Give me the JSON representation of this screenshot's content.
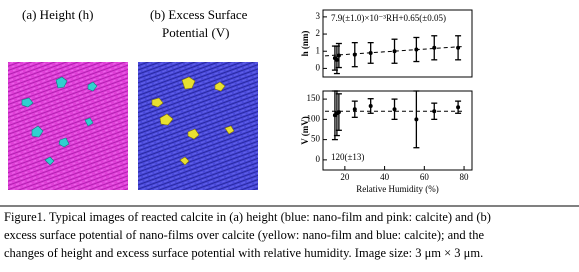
{
  "panels": {
    "a": "(a) Height (h)",
    "b_line1": "(b) Excess Surface",
    "b_line2": "Potential (V)"
  },
  "chart_data": [
    {
      "type": "scatter",
      "ylabel": "h (nm)",
      "annotation": "7.9(±1.0)×10⁻³RH+0.65(±0.05)",
      "xlim": [
        9,
        84
      ],
      "ylim": [
        -0.5,
        3.4
      ],
      "yticks": [
        0,
        1,
        2,
        3
      ],
      "color": "#000000",
      "x": [
        15,
        16,
        17,
        25,
        33,
        45,
        56,
        65,
        77
      ],
      "values": [
        0.6,
        0.5,
        0.75,
        0.8,
        0.9,
        1.0,
        1.1,
        1.2,
        1.2
      ],
      "errors": [
        0.7,
        0.8,
        0.7,
        0.7,
        0.6,
        0.7,
        0.7,
        0.7,
        0.7
      ],
      "lines": [
        {
          "x": [
            10,
            80
          ],
          "values": [
            0.73,
            1.28
          ],
          "dashed": true
        }
      ]
    },
    {
      "type": "scatter",
      "ylabel": "V (mV)",
      "xlabel": "Relative Humidity (%)",
      "annotation": "120(±13)",
      "xlim": [
        9,
        84
      ],
      "ylim": [
        -25,
        170
      ],
      "yticks": [
        0,
        50,
        100,
        150
      ],
      "xticks": [
        20,
        40,
        60,
        80
      ],
      "color": "#000000",
      "x": [
        15,
        16,
        17,
        25,
        33,
        45,
        56,
        65,
        77
      ],
      "values": [
        110,
        115,
        118,
        125,
        133,
        125,
        100,
        120,
        130
      ],
      "errors": [
        60,
        55,
        45,
        20,
        18,
        25,
        70,
        20,
        15
      ],
      "lines": [
        {
          "x": [
            10,
            80
          ],
          "values": [
            120,
            120
          ],
          "dashed": true
        }
      ]
    }
  ],
  "caption": {
    "lines": [
      "Figure1. Typical images of reacted calcite in (a) height (blue: nano-film and pink: calcite) and (b)",
      "excess surface potential of nano-films over calcite (yellow: nano-film and blue: calcite); and the",
      "changes of height and excess surface potential with relative humidity. Image size: 3 μm × 3 μm."
    ]
  }
}
